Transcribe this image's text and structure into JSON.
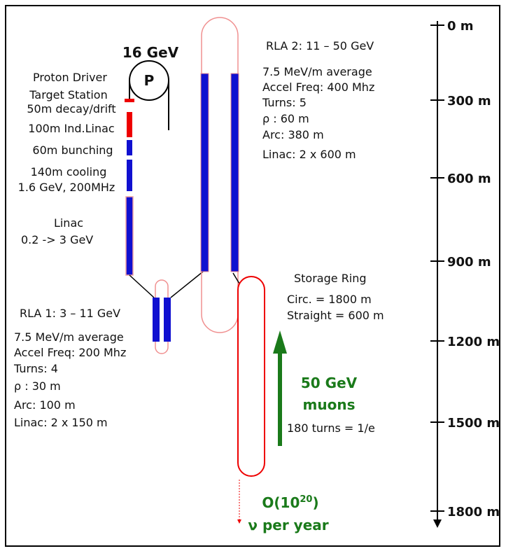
{
  "diagram": {
    "proton_driver": {
      "energy": "16 GeV",
      "symbol": "P"
    },
    "front_end_labels": [
      "Proton Driver",
      "Target Station",
      "50m decay/drift",
      "100m Ind.Linac",
      "60m bunching",
      "140m cooling",
      "1.6 GeV, 200MHz",
      "Linac",
      "0.2 -> 3 GeV"
    ],
    "rla2": {
      "title": "RLA 2:  11 – 50 GeV",
      "lines": [
        "7.5 MeV/m average",
        "Accel Freq: 400 Mhz",
        "Turns:  5",
        "ρ :  60 m",
        "Arc:  380 m",
        "Linac:  2 x 600 m"
      ]
    },
    "rla1": {
      "title": "RLA 1:  3 – 11 GeV",
      "lines": [
        "7.5 MeV/m average",
        "Accel Freq: 200 Mhz",
        "Turns:  4",
        "ρ :  30 m",
        "Arc:  100 m",
        "Linac:  2 x 150 m"
      ]
    },
    "storage_ring": {
      "title": "Storage Ring",
      "lines": [
        "Circ. = 1800 m",
        "Straight = 600 m"
      ]
    },
    "muons": {
      "lines": [
        "50 GeV",
        "muons"
      ],
      "note": "180 turns = 1/e"
    },
    "flux": {
      "prefix": "O(10",
      "exponent": "20",
      "suffix": ")",
      "line2": "ν per year"
    },
    "scale": [
      "0 m",
      "300 m",
      "600 m",
      "900 m",
      "1200 m",
      "1500 m",
      "1800 m"
    ]
  }
}
